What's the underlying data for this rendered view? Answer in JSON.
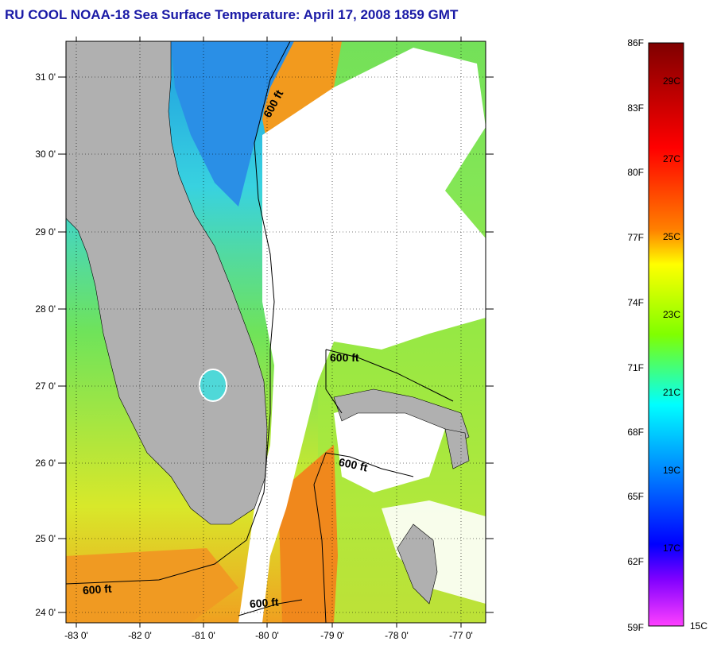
{
  "title": "RU COOL  NOAA-18  Sea Surface Temperature:  April 17, 2008 1859 GMT",
  "map": {
    "lon_ticks": [
      "-83 0'",
      "-82 0'",
      "-81 0'",
      "-80 0'",
      "-79 0'",
      "-78 0'",
      "-77 0'"
    ],
    "lat_ticks": [
      "31 0'",
      "30 0'",
      "29 0'",
      "28 0'",
      "27 0'",
      "26 0'",
      "25 0'",
      "24 0'"
    ],
    "contour_labels": [
      "600 ft",
      "600 ft",
      "600 ft",
      "600 ft",
      "600 ft"
    ],
    "colors": {
      "land": "#b0b0b0",
      "cloud": "#ffffff",
      "border": "#000000"
    }
  },
  "colorbar": {
    "fahrenheit": [
      "86F",
      "83F",
      "80F",
      "77F",
      "74F",
      "71F",
      "68F",
      "65F",
      "62F",
      "59F"
    ],
    "celsius": [
      "29C",
      "27C",
      "25C",
      "23C",
      "21C",
      "19C",
      "17C",
      "15C"
    ],
    "stops": [
      "#7f0000",
      "#ff0000",
      "#ff8000",
      "#ffff00",
      "#80ff00",
      "#00ffff",
      "#0080ff",
      "#0000ff",
      "#8000ff",
      "#ff40ff"
    ]
  }
}
